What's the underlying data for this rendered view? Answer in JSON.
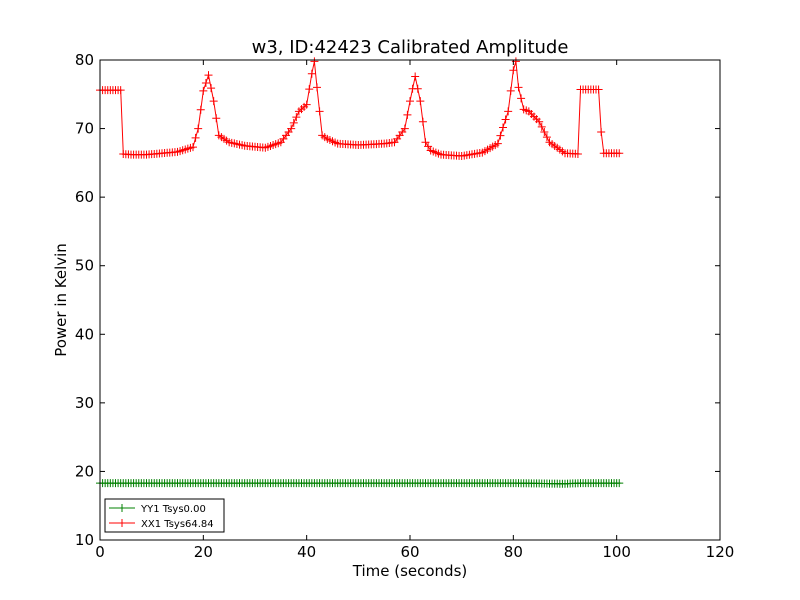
{
  "chart_data": {
    "type": "line",
    "title": "w3, ID:42423 Calibrated Amplitude",
    "xlabel": "Time (seconds)",
    "ylabel": "Power in Kelvin",
    "xlim": [
      0,
      120
    ],
    "ylim": [
      10,
      80
    ],
    "xticks": [
      "0",
      "20",
      "40",
      "60",
      "80",
      "100",
      "120"
    ],
    "yticks": [
      "10",
      "20",
      "30",
      "40",
      "50",
      "60",
      "70",
      "80"
    ],
    "grid": false,
    "legend_position": "lower-left",
    "marker": "+",
    "series": [
      {
        "name": "YY1 Tsys0.00",
        "color": "#008000",
        "x": [
          0,
          10,
          20,
          30,
          40,
          50,
          60,
          70,
          80,
          90,
          93,
          100.5
        ],
        "y": [
          18.3,
          18.3,
          18.3,
          18.3,
          18.3,
          18.3,
          18.3,
          18.3,
          18.3,
          18.2,
          18.3,
          18.3
        ]
      },
      {
        "name": "XX1 Tsys64.84",
        "color": "#ff0000",
        "x": [
          0,
          2,
          4,
          4.3,
          6,
          9,
          12,
          15,
          18,
          19,
          20,
          21,
          22,
          23,
          25,
          28,
          32,
          35,
          37,
          38.5,
          40,
          41,
          41.5,
          42,
          43,
          44,
          46,
          50,
          55,
          57,
          59,
          60,
          61,
          62,
          63,
          64,
          66,
          70,
          74,
          77,
          79,
          80,
          80.5,
          81,
          82,
          83,
          85,
          87,
          90,
          92.5,
          92.8,
          95,
          96.8,
          97.1,
          100.5
        ],
        "y": [
          75.6,
          75.6,
          75.6,
          66.3,
          66.2,
          66.2,
          66.4,
          66.6,
          67.3,
          70,
          75.5,
          77.8,
          74,
          69,
          68,
          67.5,
          67.2,
          68,
          70,
          72.5,
          73.5,
          78,
          79.8,
          76,
          69,
          68.5,
          67.8,
          67.6,
          67.8,
          68,
          70,
          74,
          77.6,
          74,
          68,
          66.8,
          66.2,
          66,
          66.5,
          67.8,
          72.5,
          78.5,
          79.8,
          76,
          72.8,
          72.5,
          71,
          68,
          66.4,
          66.3,
          75.7,
          75.7,
          75.7,
          66.4,
          66.4
        ]
      }
    ]
  }
}
